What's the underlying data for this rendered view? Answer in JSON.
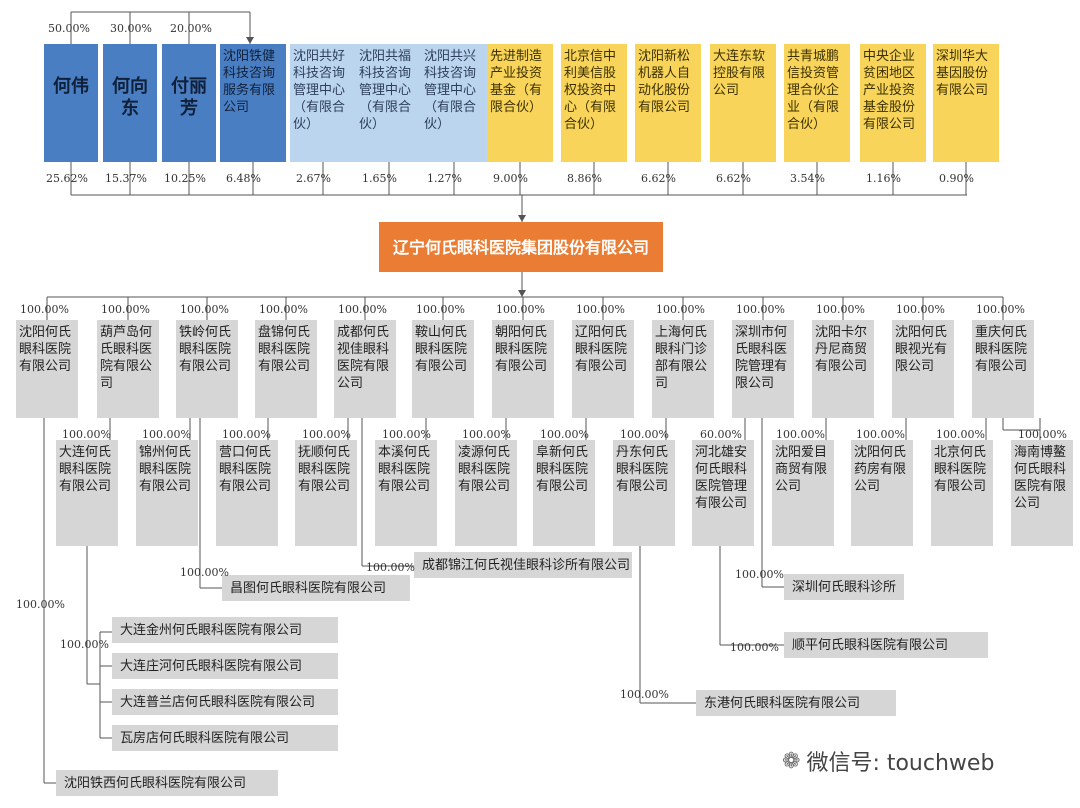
{
  "top_shareholder_pcts": [
    "50.00%",
    "30.00%",
    "20.00%"
  ],
  "shareholders": [
    {
      "name": "何伟",
      "pct": "25.62%",
      "style": "dark-person"
    },
    {
      "name": "何向东",
      "pct": "15.37%",
      "style": "dark-person"
    },
    {
      "name": "付丽芳",
      "pct": "10.25%",
      "style": "dark-person"
    },
    {
      "name": "沈阳铁健科技咨询服务有限公司",
      "pct": "6.48%",
      "style": "dark-company"
    },
    {
      "name": "沈阳共好科技咨询管理中心（有限合伙）",
      "pct": "2.67%",
      "style": "light"
    },
    {
      "name": "沈阳共福科技咨询管理中心（有限合伙）",
      "pct": "1.65%",
      "style": "light"
    },
    {
      "name": "沈阳共兴科技咨询管理中心（有限合伙）",
      "pct": "1.27%",
      "style": "light"
    },
    {
      "name": "先进制造产业投资基金（有限合伙）",
      "pct": "9.00%",
      "style": "yellow"
    },
    {
      "name": "北京信中利美信股权投资中心（有限合伙）",
      "pct": "8.86%",
      "style": "yellow"
    },
    {
      "name": "沈阳新松机器人自动化股份有限公司",
      "pct": "6.62%",
      "style": "yellow"
    },
    {
      "name": "大连东软控股有限公司",
      "pct": "6.62%",
      "style": "yellow"
    },
    {
      "name": "共青城鹏信投资管理合伙企业（有限合伙）",
      "pct": "3.54%",
      "style": "yellow"
    },
    {
      "name": "中央企业贫困地区产业投资基金股份有限公司",
      "pct": "1.16%",
      "style": "yellow"
    },
    {
      "name": "深圳华大基因股份有限公司",
      "pct": "0.90%",
      "style": "yellow"
    }
  ],
  "center_company": "辽宁何氏眼科医院集团股份有限公司",
  "subs_row1": [
    {
      "name": "沈阳何氏眼科医院有限公司",
      "pct": "100.00%"
    },
    {
      "name": "葫芦岛何氏眼科医院有限公司",
      "pct": "100.00%"
    },
    {
      "name": "铁岭何氏眼科医院有限公司",
      "pct": "100.00%"
    },
    {
      "name": "盘锦何氏眼科医院有限公司",
      "pct": "100.00%"
    },
    {
      "name": "成都何氏视佳眼科医院有限公司",
      "pct": "100.00%"
    },
    {
      "name": "鞍山何氏眼科医院有限公司",
      "pct": "100.00%"
    },
    {
      "name": "朝阳何氏眼科医院有限公司",
      "pct": "100.00%"
    },
    {
      "name": "辽阳何氏眼科医院有限公司",
      "pct": "100.00%"
    },
    {
      "name": "上海何氏眼科门诊部有限公司",
      "pct": "100.00%"
    },
    {
      "name": "深圳市何氏眼科医院管理有限公司",
      "pct": "100.00%"
    },
    {
      "name": "沈阳卡尔丹尼商贸有限公司",
      "pct": "100.00%"
    },
    {
      "name": "沈阳何氏眼视光有限公司",
      "pct": "100.00%"
    },
    {
      "name": "重庆何氏眼科医院有限公司",
      "pct": "100.00%"
    }
  ],
  "subs_row2": [
    {
      "name": "大连何氏眼科医院有限公司",
      "pct": "100.00%"
    },
    {
      "name": "锦州何氏眼科医院有限公司",
      "pct": "100.00%"
    },
    {
      "name": "营口何氏眼科医院有限公司",
      "pct": "100.00%"
    },
    {
      "name": "抚顺何氏眼科医院有限公司",
      "pct": "100.00%"
    },
    {
      "name": "本溪何氏眼科医院有限公司",
      "pct": "100.00%"
    },
    {
      "name": "凌源何氏眼科医院有限公司",
      "pct": "100.00%"
    },
    {
      "name": "阜新何氏眼科医院有限公司",
      "pct": "100.00%"
    },
    {
      "name": "丹东何氏眼科医院有限公司",
      "pct": "100.00%"
    },
    {
      "name": "河北雄安何氏眼科医院管理有限公司",
      "pct": "60.00%"
    },
    {
      "name": "沈阳爱目商贸有限公司",
      "pct": "100.00%"
    },
    {
      "name": "沈阳何氏药房有限公司",
      "pct": "100.00%"
    },
    {
      "name": "北京何氏眼科医院有限公司",
      "pct": "100.00%"
    },
    {
      "name": "海南博鳌何氏眼科医院有限公司",
      "pct": "100.00%"
    }
  ],
  "deep_subs": [
    {
      "name": "成都锦江何氏视佳眼科诊所有限公司",
      "pct": "100.00%"
    },
    {
      "name": "昌图何氏眼科医院有限公司",
      "pct": "100.00%"
    },
    {
      "name": "深圳何氏眼科诊所",
      "pct": "100.00%"
    },
    {
      "name": "大连金州何氏眼科医院有限公司",
      "pct": "100.00%"
    },
    {
      "name": "大连庄河何氏眼科医院有限公司",
      "pct": ""
    },
    {
      "name": "大连普兰店何氏眼科医院有限公司",
      "pct": ""
    },
    {
      "name": "瓦房店何氏眼科医院有限公司",
      "pct": ""
    },
    {
      "name": "顺平何氏眼科医院有限公司",
      "pct": "100.00%"
    },
    {
      "name": "东港何氏眼科医院有限公司",
      "pct": "100.00%"
    },
    {
      "name": "沈阳铁西何氏眼科医院有限公司",
      "pct": "100.00%"
    }
  ],
  "watermark": {
    "icon": "wechat-icon",
    "text": "微信号: touchweb"
  }
}
